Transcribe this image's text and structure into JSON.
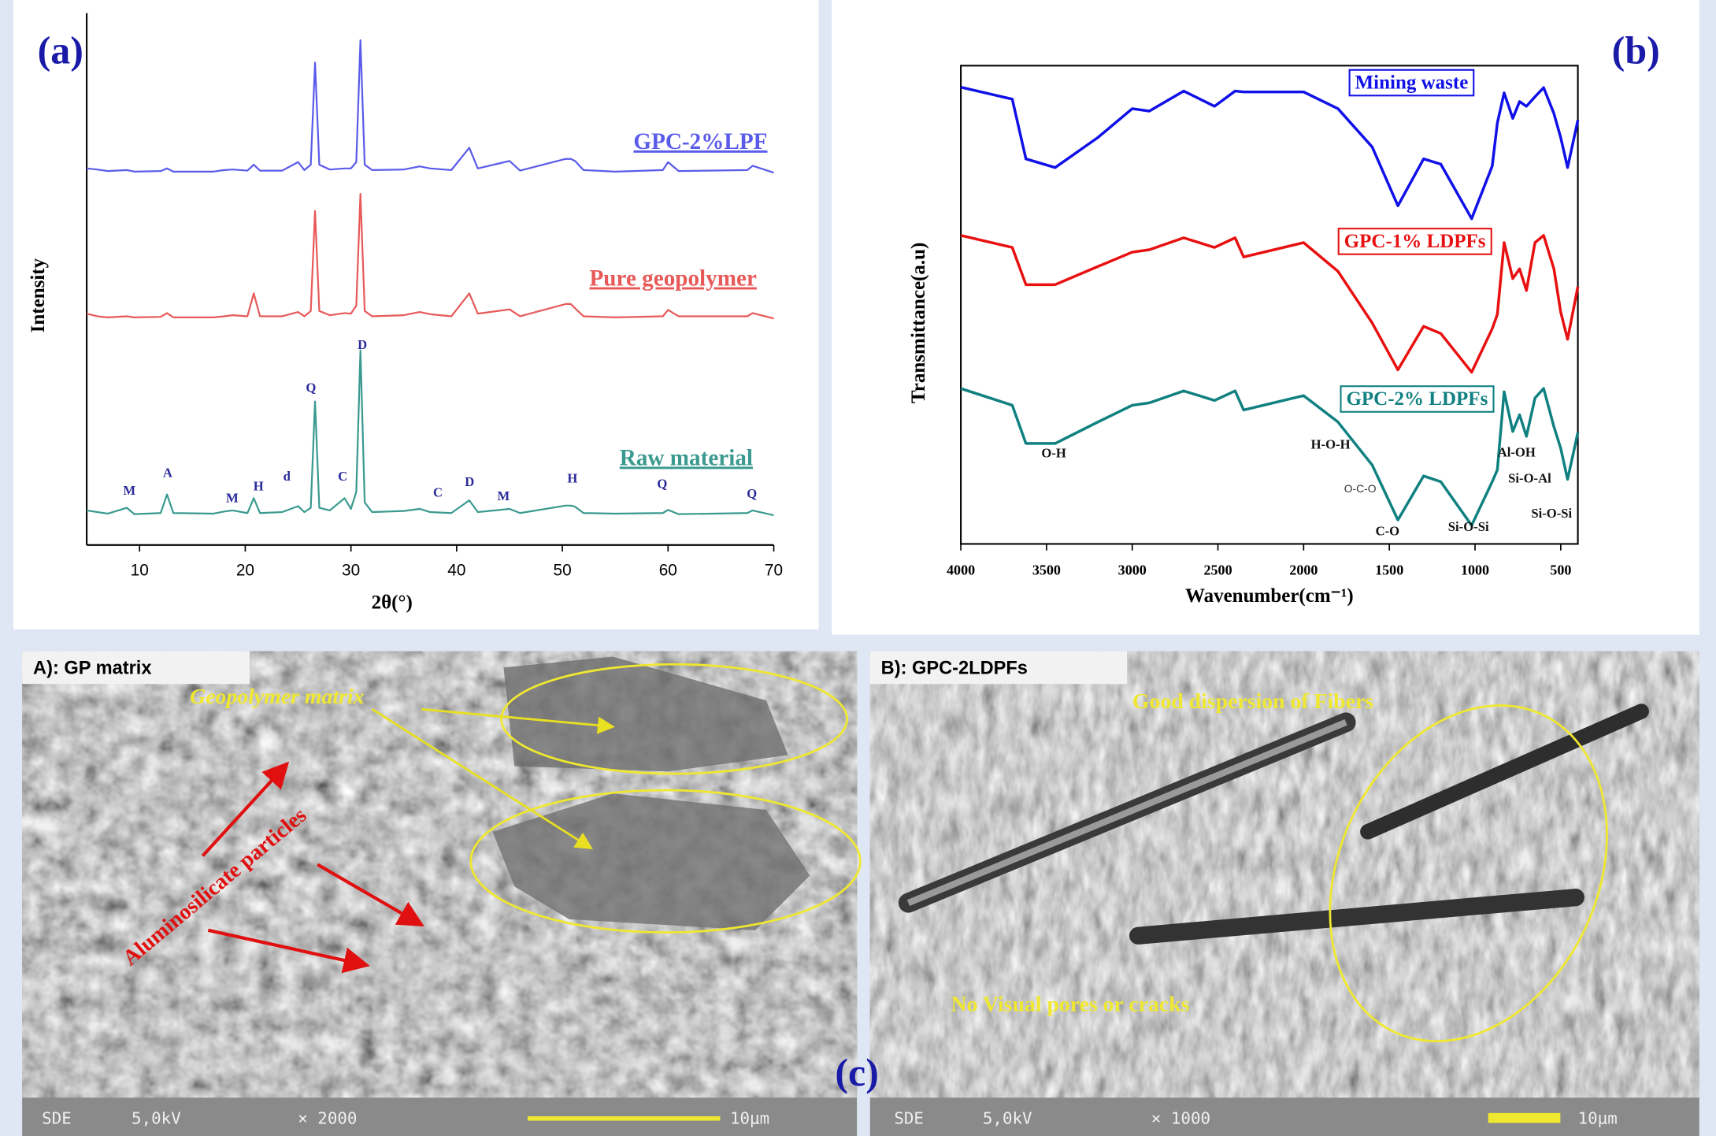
{
  "panel_labels": [
    "(a)",
    "(b)",
    "(c)"
  ],
  "chart_data": [
    {
      "type": "line",
      "x_label": "2θ(°)",
      "y_label": "Intensity",
      "x": [
        5,
        6,
        7,
        8.8,
        9.5,
        12,
        12.6,
        13.2,
        17,
        18,
        18.8,
        20.2,
        20.8,
        21.4,
        23.5,
        25,
        25.6,
        26.2,
        26.6,
        27,
        28,
        29.4,
        30,
        30.5,
        30.9,
        31.3,
        32,
        35,
        36.5,
        37.5,
        39.5,
        41.2,
        42,
        45,
        46,
        50.3,
        50.8,
        51.2,
        52,
        55,
        59.5,
        60,
        61,
        67.5,
        68,
        70
      ],
      "xlim": [
        5,
        70
      ],
      "xticks": [
        10,
        20,
        30,
        40,
        50,
        60,
        70
      ],
      "ylim": [
        0,
        100
      ],
      "series": [
        {
          "name": "GPC-2%LPF",
          "color": "#5b5bea",
          "values": [
            70.8,
            70.6,
            70.3,
            70.5,
            70.2,
            70.3,
            70.8,
            70.2,
            70.2,
            70.5,
            70.6,
            70.4,
            71.5,
            70.4,
            70.4,
            72,
            70.5,
            71.5,
            90.7,
            71.5,
            70.6,
            70.8,
            70.8,
            72,
            94.9,
            71.5,
            70.5,
            70.6,
            71.2,
            70.8,
            70.5,
            74.7,
            70.8,
            72.2,
            70.4,
            72.6,
            72.6,
            72.2,
            70.5,
            70.2,
            70.5,
            72,
            70.3,
            70.5,
            71.3,
            70
          ]
        },
        {
          "name": "Pure geopolymer",
          "color": "#e85a5a",
          "values": [
            43.5,
            43,
            42.8,
            43,
            42.8,
            42.9,
            43.6,
            42.8,
            42.8,
            43,
            43.2,
            43,
            47.3,
            43,
            43,
            43.8,
            43,
            44,
            62.8,
            44,
            43.2,
            43.6,
            43.5,
            45,
            66,
            44,
            43,
            43.2,
            43.8,
            43.4,
            43,
            47.3,
            43.5,
            44.3,
            43,
            45.3,
            45.3,
            44.5,
            43,
            42.8,
            43,
            44.2,
            43,
            43,
            43.6,
            42.6
          ]
        },
        {
          "name": "Raw material",
          "color": "#3a9a8f",
          "values": [
            6.5,
            6.2,
            5.9,
            7,
            5.8,
            6,
            9.5,
            6,
            5.9,
            6.3,
            6.5,
            6,
            8.8,
            6,
            6.2,
            7.3,
            6.2,
            7,
            27,
            7,
            6.5,
            8.8,
            6.8,
            10,
            36.6,
            8,
            6.2,
            6.4,
            6.8,
            6.2,
            6,
            8.4,
            6.2,
            6.8,
            6,
            7.4,
            7.4,
            7.2,
            6,
            5.9,
            6,
            6.6,
            5.8,
            6,
            6.5,
            5.6
          ]
        }
      ],
      "annotations": [
        "M",
        "A",
        "M",
        "H",
        "d",
        "Q",
        "C",
        "D",
        "C",
        "D",
        "M",
        "H",
        "Q",
        "Q"
      ]
    },
    {
      "type": "line",
      "x_label": "Wavenumber(cm⁻¹)",
      "y_label": "Transmittance(a.u)",
      "x": [
        4000,
        3700,
        3620,
        3450,
        3200,
        3000,
        2900,
        2700,
        2520,
        2400,
        2350,
        2000,
        1800,
        1600,
        1450,
        1300,
        1200,
        1020,
        900,
        870,
        830,
        780,
        740,
        700,
        650,
        600,
        540,
        500,
        460,
        400
      ],
      "xlim": [
        4000,
        400
      ],
      "xticks": [
        4000,
        3500,
        3000,
        2500,
        2000,
        1500,
        1000,
        500
      ],
      "ylim": [
        0,
        100
      ],
      "series": [
        {
          "name": "Mining waste",
          "color": "#1010e8",
          "values": [
            95.5,
            93,
            80.5,
            78.7,
            85,
            91,
            90.5,
            94.7,
            91.5,
            94.7,
            94.5,
            94.5,
            91,
            83,
            70.7,
            80.5,
            79.4,
            68,
            79,
            88,
            94.3,
            89,
            92.5,
            91.5,
            93.5,
            95.4,
            90,
            85,
            78.7,
            88.6
          ]
        },
        {
          "name": "GPC-1% LDPFs",
          "color": "#e81010",
          "values": [
            64.5,
            62,
            54.2,
            54.2,
            58,
            61,
            61.5,
            64,
            62,
            64,
            60,
            63,
            57,
            46.2,
            36.4,
            45.5,
            44,
            35.9,
            45,
            48,
            63,
            55.5,
            57.5,
            53,
            63,
            64.5,
            57.5,
            48.5,
            42.8,
            53.8
          ]
        },
        {
          "name": "GPC-2% LDPFs",
          "color": "#108080",
          "values": [
            32.5,
            29,
            21,
            21,
            25.5,
            29,
            29.5,
            32,
            30,
            32,
            28,
            31,
            25.5,
            16.5,
            5,
            14.2,
            13,
            3.9,
            13,
            15.5,
            31.8,
            23.5,
            27,
            22.5,
            30.5,
            32.5,
            24.5,
            20,
            13.5,
            23.3
          ]
        }
      ],
      "annotations": [
        "O-H",
        "H-O-H",
        "O-C-O",
        "C-O",
        "Si-O-Si",
        "Al-OH",
        "Si-O-Al",
        "Si-O-Si"
      ]
    }
  ],
  "sem_panels": [
    {
      "title": "A): GP matrix",
      "annotations": [
        "Geopolymer matrix",
        "Aluminosilicate particles"
      ],
      "footer": [
        "SDE",
        "5,0kV",
        "× 2000",
        "10μm"
      ]
    },
    {
      "title": "B): GPC-2LDPFs",
      "annotations": [
        "Good dispersion of Fibers",
        "No Visual pores or cracks"
      ],
      "footer": [
        "SDE",
        "5,0kV",
        "× 1000",
        "10μm"
      ]
    }
  ]
}
